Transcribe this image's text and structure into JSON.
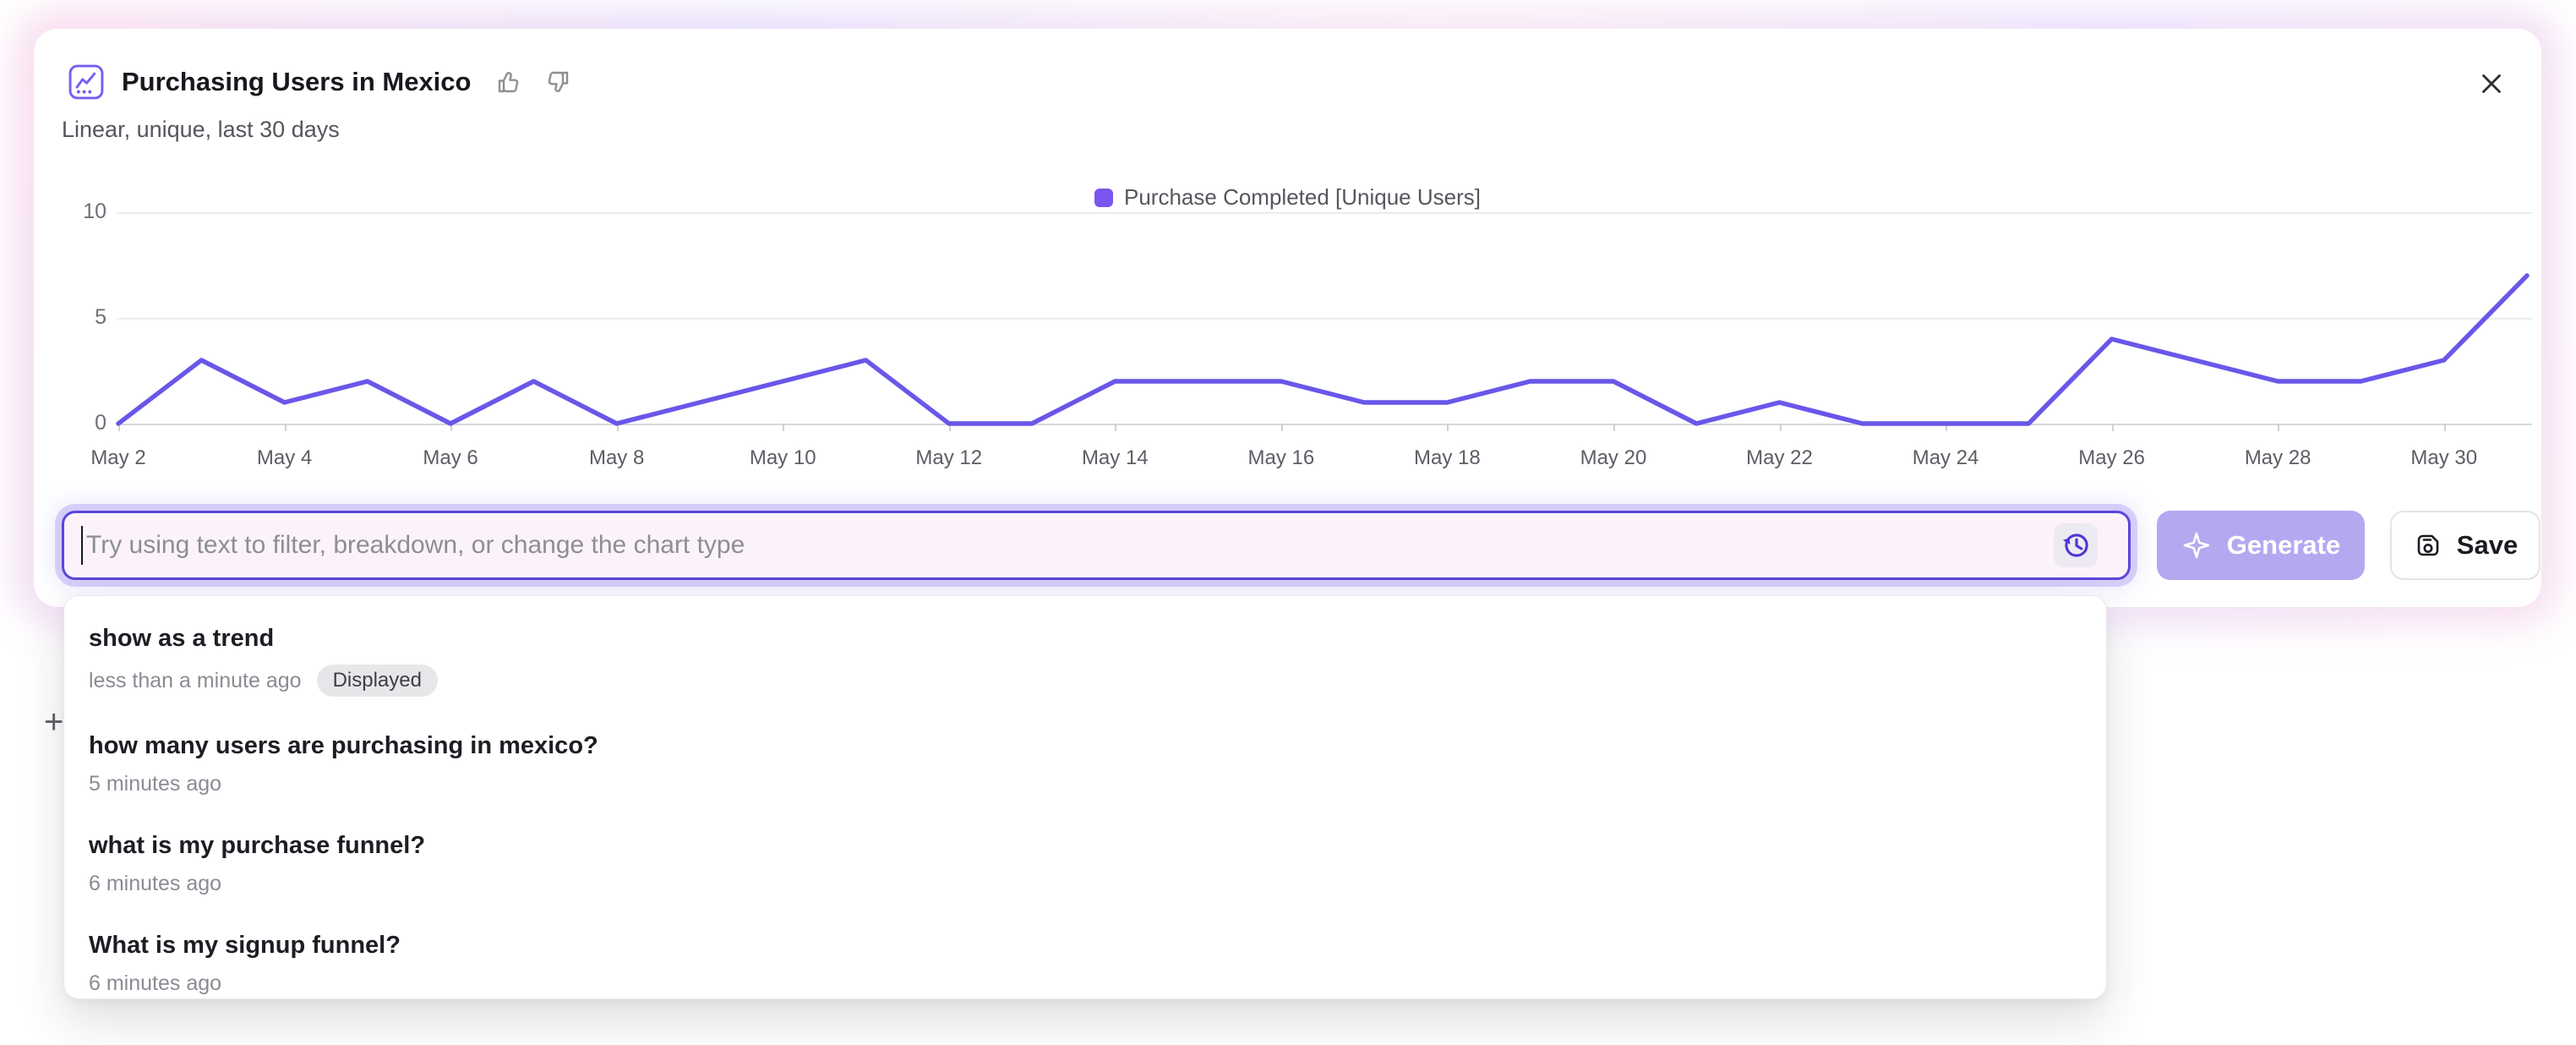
{
  "header": {
    "title": "Purchasing Users in Mexico",
    "subtitle": "Linear, unique, last 30 days"
  },
  "legend": {
    "label": "Purchase Completed [Unique Users]",
    "color": "#7a55f2"
  },
  "chart_data": {
    "type": "line",
    "title": "Purchasing Users in Mexico",
    "x": [
      "May 2",
      "May 3",
      "May 4",
      "May 5",
      "May 6",
      "May 7",
      "May 8",
      "May 9",
      "May 10",
      "May 11",
      "May 12",
      "May 13",
      "May 14",
      "May 15",
      "May 16",
      "May 17",
      "May 18",
      "May 19",
      "May 20",
      "May 21",
      "May 22",
      "May 23",
      "May 24",
      "May 25",
      "May 26",
      "May 27",
      "May 28",
      "May 29",
      "May 30",
      "May 31"
    ],
    "series": [
      {
        "name": "Purchase Completed [Unique Users]",
        "values": [
          0,
          3,
          1,
          2,
          0,
          2,
          0,
          1,
          2,
          3,
          0,
          0,
          2,
          2,
          2,
          1,
          1,
          2,
          2,
          0,
          1,
          0,
          0,
          0,
          4,
          3,
          2,
          2,
          3,
          7
        ]
      }
    ],
    "xlabel": "",
    "ylabel": "",
    "ylim": [
      0,
      10
    ],
    "yticks": [
      0,
      5,
      10
    ],
    "xtick_every": 2,
    "grid": true,
    "legend_position": "top-center",
    "line_color": "#6957e9"
  },
  "prompt_bar": {
    "placeholder": "Try using text to filter, breakdown, or change the chart type",
    "generate_label": "Generate",
    "save_label": "Save"
  },
  "history_dropdown": {
    "items": [
      {
        "query": "show as a trend",
        "time": "less than a minute ago",
        "badge": "Displayed"
      },
      {
        "query": "how many users are purchasing in mexico?",
        "time": "5 minutes ago"
      },
      {
        "query": "what is my purchase funnel?",
        "time": "6 minutes ago"
      },
      {
        "query": "What is my signup funnel?",
        "time": "6 minutes ago"
      }
    ]
  },
  "background": {
    "partial_plus": "+"
  },
  "colors": {
    "accent_purple": "#5b46da",
    "generate_bg": "#b6a8f0",
    "input_bg": "#fcf3fa"
  }
}
